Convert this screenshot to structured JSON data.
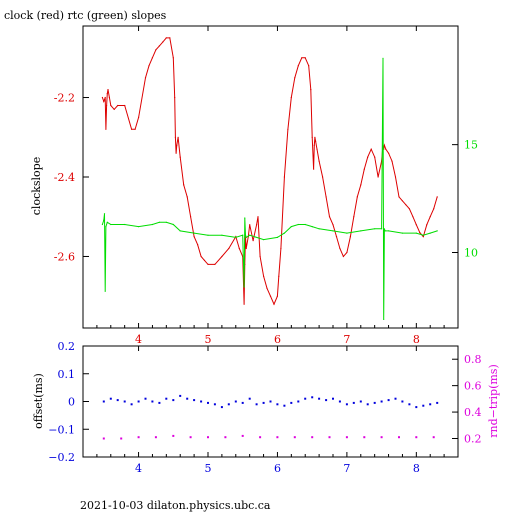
{
  "title": "clock (red) rtc (green) slopes",
  "footer": "2021-10-03  dilaton.physics.ubc.ca",
  "colors": {
    "red": "#dd0000",
    "green": "#00dd00",
    "blue": "#0000dd",
    "magenta": "#dd00dd",
    "axis": "#000000"
  },
  "chart_data": [
    {
      "type": "line",
      "title": "clock (red) rtc (green) slopes",
      "xlim": [
        3.2,
        8.6
      ],
      "x_ticks": [
        4,
        5,
        6,
        7,
        8
      ],
      "grid": false,
      "left_axis": {
        "label": "clockslope",
        "lim": [
          -2.78,
          -2.02
        ],
        "ticks": [
          -2.2,
          -2.4,
          -2.6
        ],
        "tick_labels": [
          "-2.2",
          "-2.4",
          "-2.6"
        ]
      },
      "right_axis": {
        "label": "",
        "lim": [
          6.5,
          20.5
        ],
        "ticks": [
          10,
          15
        ],
        "tick_labels": [
          "10",
          "15"
        ]
      },
      "series": [
        {
          "name": "clock",
          "axis": "left",
          "color": "#dd0000",
          "x": [
            3.48,
            3.5,
            3.52,
            3.53,
            3.54,
            3.55,
            3.56,
            3.58,
            3.6,
            3.65,
            3.7,
            3.8,
            3.9,
            3.95,
            4.0,
            4.1,
            4.15,
            4.2,
            4.25,
            4.3,
            4.35,
            4.4,
            4.45,
            4.5,
            4.52,
            4.53,
            4.54,
            4.55,
            4.57,
            4.6,
            4.65,
            4.7,
            4.75,
            4.8,
            4.85,
            4.9,
            4.95,
            5.0,
            5.1,
            5.2,
            5.3,
            5.4,
            5.45,
            5.5,
            5.52,
            5.53,
            5.54,
            5.55,
            5.58,
            5.6,
            5.65,
            5.7,
            5.72,
            5.75,
            5.8,
            5.85,
            5.9,
            5.95,
            6.0,
            6.02,
            6.05,
            6.1,
            6.15,
            6.2,
            6.25,
            6.3,
            6.35,
            6.4,
            6.45,
            6.48,
            6.5,
            6.52,
            6.53,
            6.54,
            6.55,
            6.57,
            6.6,
            6.65,
            6.7,
            6.75,
            6.8,
            6.85,
            6.9,
            6.95,
            7.0,
            7.05,
            7.1,
            7.15,
            7.2,
            7.25,
            7.3,
            7.35,
            7.4,
            7.45,
            7.5,
            7.52,
            7.53,
            7.54,
            7.56,
            7.6,
            7.65,
            7.7,
            7.75,
            7.8,
            7.85,
            7.9,
            7.95,
            8.0,
            8.05,
            8.1,
            8.15,
            8.2,
            8.25,
            8.3
          ],
          "y": [
            -2.2,
            -2.21,
            -2.2,
            -2.28,
            -2.22,
            -2.19,
            -2.18,
            -2.2,
            -2.22,
            -2.23,
            -2.22,
            -2.22,
            -2.28,
            -2.28,
            -2.25,
            -2.15,
            -2.12,
            -2.1,
            -2.08,
            -2.07,
            -2.06,
            -2.05,
            -2.05,
            -2.1,
            -2.2,
            -2.3,
            -2.34,
            -2.32,
            -2.3,
            -2.35,
            -2.42,
            -2.45,
            -2.5,
            -2.55,
            -2.57,
            -2.6,
            -2.61,
            -2.62,
            -2.62,
            -2.6,
            -2.58,
            -2.55,
            -2.58,
            -2.6,
            -2.72,
            -2.62,
            -2.55,
            -2.58,
            -2.55,
            -2.52,
            -2.56,
            -2.52,
            -2.5,
            -2.6,
            -2.65,
            -2.68,
            -2.7,
            -2.72,
            -2.7,
            -2.65,
            -2.58,
            -2.4,
            -2.28,
            -2.2,
            -2.15,
            -2.12,
            -2.1,
            -2.1,
            -2.12,
            -2.18,
            -2.3,
            -2.38,
            -2.32,
            -2.3,
            -2.31,
            -2.33,
            -2.36,
            -2.4,
            -2.45,
            -2.5,
            -2.52,
            -2.55,
            -2.58,
            -2.6,
            -2.59,
            -2.55,
            -2.5,
            -2.45,
            -2.42,
            -2.38,
            -2.35,
            -2.33,
            -2.35,
            -2.4,
            -2.36,
            -2.32,
            -2.33,
            -2.32,
            -2.33,
            -2.34,
            -2.36,
            -2.4,
            -2.45,
            -2.46,
            -2.47,
            -2.48,
            -2.5,
            -2.52,
            -2.54,
            -2.55,
            -2.52,
            -2.5,
            -2.48,
            -2.45
          ]
        },
        {
          "name": "rtc",
          "axis": "right",
          "color": "#00dd00",
          "x": [
            3.48,
            3.5,
            3.51,
            3.52,
            3.53,
            3.55,
            3.6,
            3.8,
            4.0,
            4.2,
            4.3,
            4.4,
            4.5,
            4.6,
            4.8,
            5.0,
            5.2,
            5.4,
            5.5,
            5.52,
            5.53,
            5.54,
            5.55,
            5.6,
            5.8,
            6.0,
            6.1,
            6.2,
            6.3,
            6.4,
            6.5,
            6.6,
            6.8,
            7.0,
            7.2,
            7.4,
            7.5,
            7.52,
            7.53,
            7.54,
            7.55,
            7.6,
            7.8,
            8.0,
            8.1,
            8.2,
            8.3
          ],
          "y": [
            11.3,
            11.5,
            11.8,
            8.2,
            11.2,
            11.4,
            11.3,
            11.3,
            11.2,
            11.3,
            11.4,
            11.4,
            11.3,
            11.0,
            10.9,
            10.8,
            10.8,
            10.7,
            10.8,
            8.4,
            11.6,
            10.8,
            10.7,
            10.8,
            10.6,
            10.7,
            10.9,
            11.2,
            11.3,
            11.3,
            11.2,
            11.1,
            11.0,
            10.9,
            11.0,
            11.1,
            11.1,
            19.0,
            6.9,
            11.1,
            11.0,
            11.0,
            10.9,
            10.9,
            10.8,
            10.9,
            11.0
          ]
        }
      ]
    },
    {
      "type": "scatter",
      "xlim": [
        3.2,
        8.6
      ],
      "x_ticks": [
        4,
        5,
        6,
        7,
        8
      ],
      "grid": false,
      "left_axis": {
        "label": "offset(ms)",
        "lim": [
          -0.2,
          0.2
        ],
        "ticks": [
          0.2,
          0.1,
          0,
          -0.1,
          -0.2
        ],
        "tick_labels": [
          "0.2",
          "0.1",
          "0",
          "−0.1",
          "−0.2"
        ]
      },
      "right_axis": {
        "label": "rnd−trip(ms)",
        "lim": [
          0.06,
          0.9
        ],
        "ticks": [
          0.2,
          0.4,
          0.6,
          0.8
        ],
        "tick_labels": [
          "0.2",
          "0.4",
          "0.6",
          "0.8"
        ]
      },
      "series": [
        {
          "name": "offset",
          "axis": "left",
          "color": "#0000dd",
          "x": [
            3.5,
            3.6,
            3.7,
            3.8,
            3.9,
            4.0,
            4.1,
            4.2,
            4.3,
            4.4,
            4.5,
            4.6,
            4.7,
            4.8,
            4.9,
            5.0,
            5.1,
            5.2,
            5.3,
            5.4,
            5.5,
            5.6,
            5.7,
            5.8,
            5.9,
            6.0,
            6.1,
            6.2,
            6.3,
            6.4,
            6.5,
            6.6,
            6.7,
            6.8,
            6.9,
            7.0,
            7.1,
            7.2,
            7.3,
            7.4,
            7.5,
            7.6,
            7.7,
            7.8,
            7.9,
            8.0,
            8.1,
            8.2,
            8.3
          ],
          "y": [
            0.0,
            0.01,
            0.005,
            0.0,
            -0.01,
            0.0,
            0.01,
            0.0,
            -0.005,
            0.01,
            0.005,
            0.02,
            0.01,
            0.005,
            0.0,
            -0.005,
            -0.01,
            -0.02,
            -0.01,
            0.0,
            -0.005,
            0.01,
            -0.01,
            -0.005,
            0.0,
            -0.01,
            -0.015,
            -0.005,
            0.0,
            0.01,
            0.015,
            0.01,
            0.005,
            0.01,
            0.0,
            -0.01,
            -0.005,
            0.0,
            -0.01,
            -0.005,
            0.0,
            0.005,
            0.01,
            0.0,
            -0.01,
            -0.02,
            -0.015,
            -0.01,
            -0.005
          ]
        },
        {
          "name": "rnd-trip",
          "axis": "right",
          "color": "#dd00dd",
          "x": [
            3.5,
            3.75,
            4.0,
            4.25,
            4.5,
            4.75,
            5.0,
            5.25,
            5.5,
            5.75,
            6.0,
            6.25,
            6.5,
            6.75,
            7.0,
            7.25,
            7.5,
            7.75,
            8.0,
            8.25
          ],
          "y": [
            0.2,
            0.2,
            0.21,
            0.21,
            0.22,
            0.21,
            0.21,
            0.21,
            0.22,
            0.21,
            0.21,
            0.21,
            0.21,
            0.21,
            0.21,
            0.21,
            0.21,
            0.21,
            0.21,
            0.21
          ]
        }
      ]
    }
  ]
}
